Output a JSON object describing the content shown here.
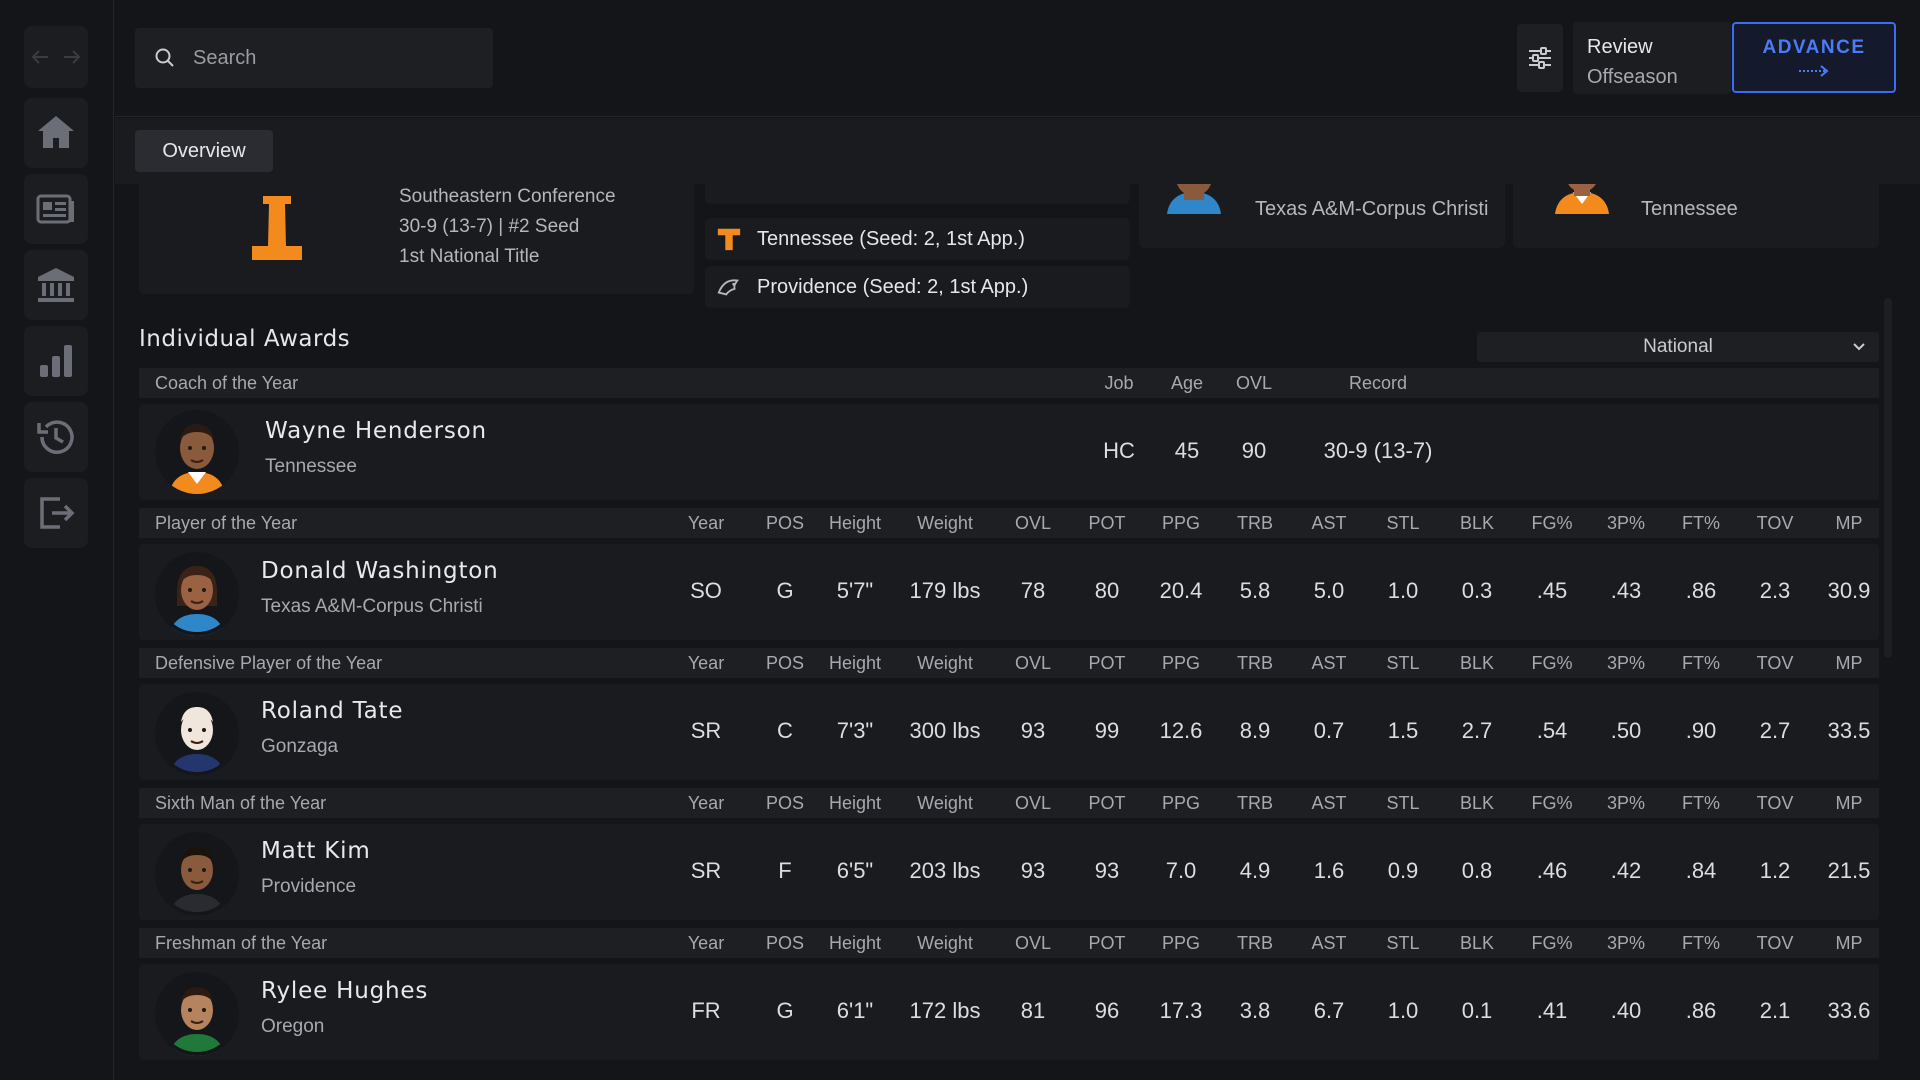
{
  "nav": {
    "back_icon": "arrow-left-icon",
    "forward_icon": "arrow-right-icon",
    "items": [
      {
        "icon": "home-icon"
      },
      {
        "icon": "news-icon"
      },
      {
        "icon": "bank-icon"
      },
      {
        "icon": "bar-chart-icon"
      },
      {
        "icon": "history-icon"
      },
      {
        "icon": "exit-icon"
      }
    ]
  },
  "search": {
    "placeholder": "Search"
  },
  "phase": {
    "line1": "Review",
    "line2": "Offseason"
  },
  "advance_label": "ADVANCE",
  "tabs": [
    {
      "label": "Overview"
    }
  ],
  "champion": {
    "conference": "Southeastern Conference",
    "record": "30-9 (13-7) | #2 Seed",
    "title": "1st National Title",
    "color": "#f28a1e"
  },
  "finalists": [
    {
      "label": "Tennessee (Seed: 2, 1st App.)"
    },
    {
      "label": "Providence (Seed: 2, 1st App.)"
    }
  ],
  "top_winners": [
    {
      "team": "Texas A&M-Corpus Christi"
    },
    {
      "team": "Tennessee"
    }
  ],
  "awards_title": "Individual Awards",
  "scope": {
    "selected": "National"
  },
  "coach_award": {
    "label": "Coach of the Year",
    "columns": [
      "Job",
      "Age",
      "OVL",
      "Record"
    ],
    "name": "Wayne Henderson",
    "team": "Tennessee",
    "values": [
      "HC",
      "45",
      "90",
      "30-9 (13-7)"
    ]
  },
  "player_columns": [
    "Year",
    "POS",
    "Height",
    "Weight",
    "OVL",
    "POT",
    "PPG",
    "TRB",
    "AST",
    "STL",
    "BLK",
    "FG%",
    "3P%",
    "FT%",
    "TOV",
    "MP"
  ],
  "player_awards": [
    {
      "label": "Player of the Year",
      "name": "Donald Washington",
      "team": "Texas A&M-Corpus Christi",
      "values": [
        "SO",
        "G",
        "5'7\"",
        "179 lbs",
        "78",
        "80",
        "20.4",
        "5.8",
        "5.0",
        "1.0",
        "0.3",
        ".45",
        ".43",
        ".86",
        "2.3",
        "30.9"
      ]
    },
    {
      "label": "Defensive Player of the Year",
      "name": "Roland Tate",
      "team": "Gonzaga",
      "values": [
        "SR",
        "C",
        "7'3\"",
        "300 lbs",
        "93",
        "99",
        "12.6",
        "8.9",
        "0.7",
        "1.5",
        "2.7",
        ".54",
        ".50",
        ".90",
        "2.7",
        "33.5"
      ]
    },
    {
      "label": "Sixth Man of the Year",
      "name": "Matt Kim",
      "team": "Providence",
      "values": [
        "SR",
        "F",
        "6'5\"",
        "203 lbs",
        "93",
        "93",
        "7.0",
        "4.9",
        "1.6",
        "0.9",
        "0.8",
        ".46",
        ".42",
        ".84",
        "1.2",
        "21.5"
      ]
    },
    {
      "label": "Freshman of the Year",
      "name": "Rylee Hughes",
      "team": "Oregon",
      "values": [
        "FR",
        "G",
        "6'1\"",
        "172 lbs",
        "81",
        "96",
        "17.3",
        "3.8",
        "6.7",
        "1.0",
        "0.1",
        ".41",
        ".40",
        ".86",
        "2.1",
        "33.6"
      ]
    }
  ],
  "colors": {
    "accent": "#3b6df0",
    "tennessee_orange": "#f28a1e"
  }
}
